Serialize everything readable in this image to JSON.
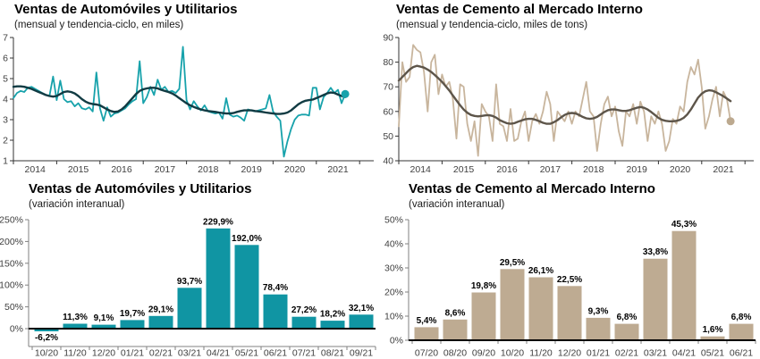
{
  "page": {
    "background": "#ffffff"
  },
  "chart_data": [
    {
      "id": "autos-line",
      "type": "line",
      "title": "Ventas de Automóviles y Utilitarios",
      "subtitle": "(mensual y tendencia-ciclo, en miles)",
      "x_years": [
        "2014",
        "2015",
        "2016",
        "2017",
        "2018",
        "2019",
        "2020",
        "2021"
      ],
      "x_start": "2014-01",
      "ylim": [
        1,
        7
      ],
      "yticks": [
        1,
        2,
        3,
        4,
        5,
        6,
        7
      ],
      "grid": false,
      "legend": "none",
      "end_marker": true,
      "colors": {
        "monthly": "#17A2AB",
        "trend": "#113B43",
        "dot": "#17A2AB",
        "axis": "#333333",
        "tick_text": "#404040"
      },
      "layout": {
        "margin_left": 15
      },
      "series": [
        {
          "name": "mensual",
          "values": [
            4.05,
            4.3,
            4.4,
            4.35,
            4.55,
            4.6,
            4.5,
            4.4,
            4.3,
            4.2,
            4.15,
            5.1,
            3.95,
            4.9,
            4.0,
            3.85,
            3.9,
            3.65,
            3.8,
            3.55,
            3.5,
            3.6,
            3.4,
            5.3,
            3.55,
            2.95,
            3.6,
            3.15,
            3.3,
            3.35,
            3.45,
            3.55,
            3.75,
            3.9,
            4.0,
            5.85,
            3.8,
            4.1,
            4.6,
            4.2,
            4.95,
            4.45,
            4.6,
            4.35,
            4.4,
            4.3,
            4.5,
            6.55,
            3.95,
            3.5,
            3.9,
            3.65,
            3.45,
            3.7,
            3.4,
            3.35,
            3.3,
            3.35,
            3.05,
            4.05,
            3.25,
            3.15,
            3.2,
            3.1,
            2.95,
            3.5,
            3.45,
            3.4,
            3.45,
            3.5,
            3.55,
            4.2,
            3.4,
            3.15,
            2.95,
            1.2,
            1.95,
            2.55,
            3.0,
            3.2,
            3.25,
            3.25,
            3.2,
            4.55,
            4.55,
            3.5,
            4.1,
            4.3,
            4.55,
            4.3,
            4.45,
            3.8,
            4.25
          ]
        },
        {
          "name": "tendencia-ciclo",
          "values": [
            4.6,
            4.62,
            4.62,
            4.6,
            4.55,
            4.5,
            4.42,
            4.35,
            4.28,
            4.2,
            4.15,
            4.12,
            4.15,
            4.25,
            4.35,
            4.38,
            4.35,
            4.28,
            4.15,
            4.0,
            3.88,
            3.8,
            3.76,
            3.74,
            3.7,
            3.6,
            3.5,
            3.42,
            3.38,
            3.4,
            3.5,
            3.65,
            3.85,
            4.05,
            4.25,
            4.4,
            4.48,
            4.52,
            4.55,
            4.55,
            4.52,
            4.45,
            4.4,
            4.35,
            4.28,
            4.18,
            4.05,
            3.92,
            3.8,
            3.7,
            3.62,
            3.55,
            3.5,
            3.45,
            3.42,
            3.4,
            3.38,
            3.35,
            3.32,
            3.3,
            3.3,
            3.32,
            3.38,
            3.42,
            3.45,
            3.45,
            3.45,
            3.42,
            3.4,
            3.38,
            3.35,
            3.32,
            3.3,
            3.28,
            3.28,
            3.3,
            3.35,
            3.45,
            3.6,
            3.75,
            3.85,
            3.92,
            3.95,
            3.98,
            4.05,
            4.12,
            4.2,
            4.28,
            4.32,
            4.3,
            4.22,
            4.15,
            4.1
          ]
        }
      ]
    },
    {
      "id": "cemento-line",
      "type": "line",
      "title": "Ventas de Cemento al Mercado Interno",
      "subtitle": "(mensual y tendencia-ciclo, miles de tons)",
      "x_years": [
        "2014",
        "2015",
        "2016",
        "2017",
        "2018",
        "2019",
        "2020",
        "2021"
      ],
      "x_start": "2014-01",
      "ylim": [
        40,
        90
      ],
      "yticks": [
        40,
        50,
        60,
        70,
        80,
        90
      ],
      "grid": false,
      "legend": "none",
      "end_marker": true,
      "colors": {
        "monthly": "#C8B59D",
        "trend": "#5D554A",
        "dot": "#BCA98F",
        "axis": "#333333",
        "tick_text": "#404040"
      },
      "layout": {
        "margin_left": 21
      },
      "series": [
        {
          "name": "mensual",
          "values": [
            54,
            80,
            72,
            74,
            87,
            85,
            84,
            76,
            60,
            80,
            83,
            67,
            75,
            70,
            72,
            65,
            49,
            71,
            70,
            55,
            48,
            56,
            42,
            63,
            60,
            58,
            48,
            71,
            55,
            54,
            48,
            61,
            48,
            49,
            56,
            60,
            48,
            56,
            59,
            55,
            60,
            68,
            63,
            48,
            60,
            58,
            56,
            60,
            55,
            60,
            58,
            65,
            72,
            60,
            58,
            44,
            55,
            63,
            66,
            58,
            62,
            52,
            46,
            60,
            58,
            63,
            55,
            64,
            60,
            48,
            58,
            55,
            60,
            55,
            44,
            48,
            57,
            55,
            62,
            60,
            72,
            78,
            75,
            81,
            70,
            53,
            58,
            65,
            70,
            58,
            68,
            65,
            56
          ]
        },
        {
          "name": "tendencia-ciclo",
          "values": [
            72.5,
            74,
            75.5,
            77,
            78,
            78.5,
            78.2,
            77.8,
            77,
            76,
            74.8,
            73.4,
            72,
            70.3,
            68.5,
            66.5,
            64.5,
            62.5,
            60.8,
            59.5,
            58.6,
            58.2,
            58,
            58.2,
            58.4,
            58.5,
            58.2,
            57.5,
            56.5,
            55.8,
            55.2,
            55,
            55.2,
            55.8,
            56.3,
            56.8,
            57,
            57,
            56.6,
            56,
            55.4,
            55,
            55,
            55.6,
            56.5,
            57.6,
            58.6,
            59.2,
            59.4,
            59.2,
            58.6,
            57.8,
            57.2,
            57,
            57.2,
            57.8,
            58.8,
            59.8,
            60.5,
            60.8,
            60.8,
            60.5,
            60.2,
            60.2,
            60.5,
            61,
            61.5,
            61.8,
            61.5,
            60.8,
            59.8,
            58.6,
            57.4,
            56.6,
            56.2,
            56,
            56,
            56.2,
            56.6,
            57.4,
            58.8,
            60.8,
            63.2,
            65.6,
            67.2,
            68.2,
            68.6,
            68.4,
            67.8,
            67,
            66.2,
            65.2,
            64.2
          ]
        }
      ]
    },
    {
      "id": "autos-bars",
      "type": "bar",
      "title": "Ventas de Automóviles y Utilitarios",
      "subtitle": "(variación interanual)",
      "categories": [
        "10/20",
        "11/20",
        "12/20",
        "01/21",
        "02/21",
        "03/21",
        "04/21",
        "05/21",
        "06/21",
        "07/21",
        "08/21",
        "09/21"
      ],
      "values": [
        -6.2,
        11.3,
        9.1,
        19.7,
        29.1,
        93.7,
        229.9,
        192.0,
        78.4,
        27.2,
        18.2,
        32.1
      ],
      "value_labels": [
        "-6,2%",
        "11,3%",
        "9,1%",
        "19,7%",
        "29,1%",
        "93,7%",
        "229,9%",
        "192,0%",
        "78,4%",
        "27,2%",
        "18,2%",
        "32,1%"
      ],
      "ylim": [
        0,
        250
      ],
      "yticks": [
        0,
        50,
        100,
        150,
        200,
        250
      ],
      "ytick_labels": [
        "0%",
        "50%",
        "100%",
        "150%",
        "200%",
        "250%"
      ],
      "grid": false,
      "legend": "none",
      "colors": {
        "bar": "#1095A3",
        "zero_line": "#000000",
        "axis": "#808080",
        "tick_text": "#404040",
        "label_text": "#000000"
      },
      "layout": {
        "zero_y": 167,
        "axis_y": 187
      }
    },
    {
      "id": "cemento-bars",
      "type": "bar",
      "title": "Ventas de Cemento al Mercado Interno",
      "subtitle": "(variación interanual)",
      "categories": [
        "07/20",
        "08/20",
        "09/20",
        "10/20",
        "11/20",
        "12/20",
        "01/21",
        "02/21",
        "03/21",
        "04/21",
        "05/21",
        "06/21"
      ],
      "values": [
        5.4,
        8.6,
        19.8,
        29.5,
        26.1,
        22.5,
        9.3,
        6.8,
        33.8,
        45.3,
        1.6,
        6.8
      ],
      "value_labels": [
        "5,4%",
        "8,6%",
        "19,8%",
        "29,5%",
        "26,1%",
        "22,5%",
        "9,3%",
        "6,8%",
        "33,8%",
        "45,3%",
        "1,6%",
        "6,8%"
      ],
      "ylim": [
        0,
        50
      ],
      "yticks": [
        0,
        10,
        20,
        30,
        40,
        50
      ],
      "ytick_labels": [
        "0%",
        "10%",
        "20%",
        "30%",
        "40%",
        "50%"
      ],
      "grid": false,
      "legend": "none",
      "colors": {
        "bar": "#BEAB92",
        "zero_line": "#000000",
        "axis": "#808080",
        "tick_text": "#404040",
        "label_text": "#000000"
      },
      "layout": {
        "zero_y": 180,
        "axis_y": 180
      }
    }
  ]
}
